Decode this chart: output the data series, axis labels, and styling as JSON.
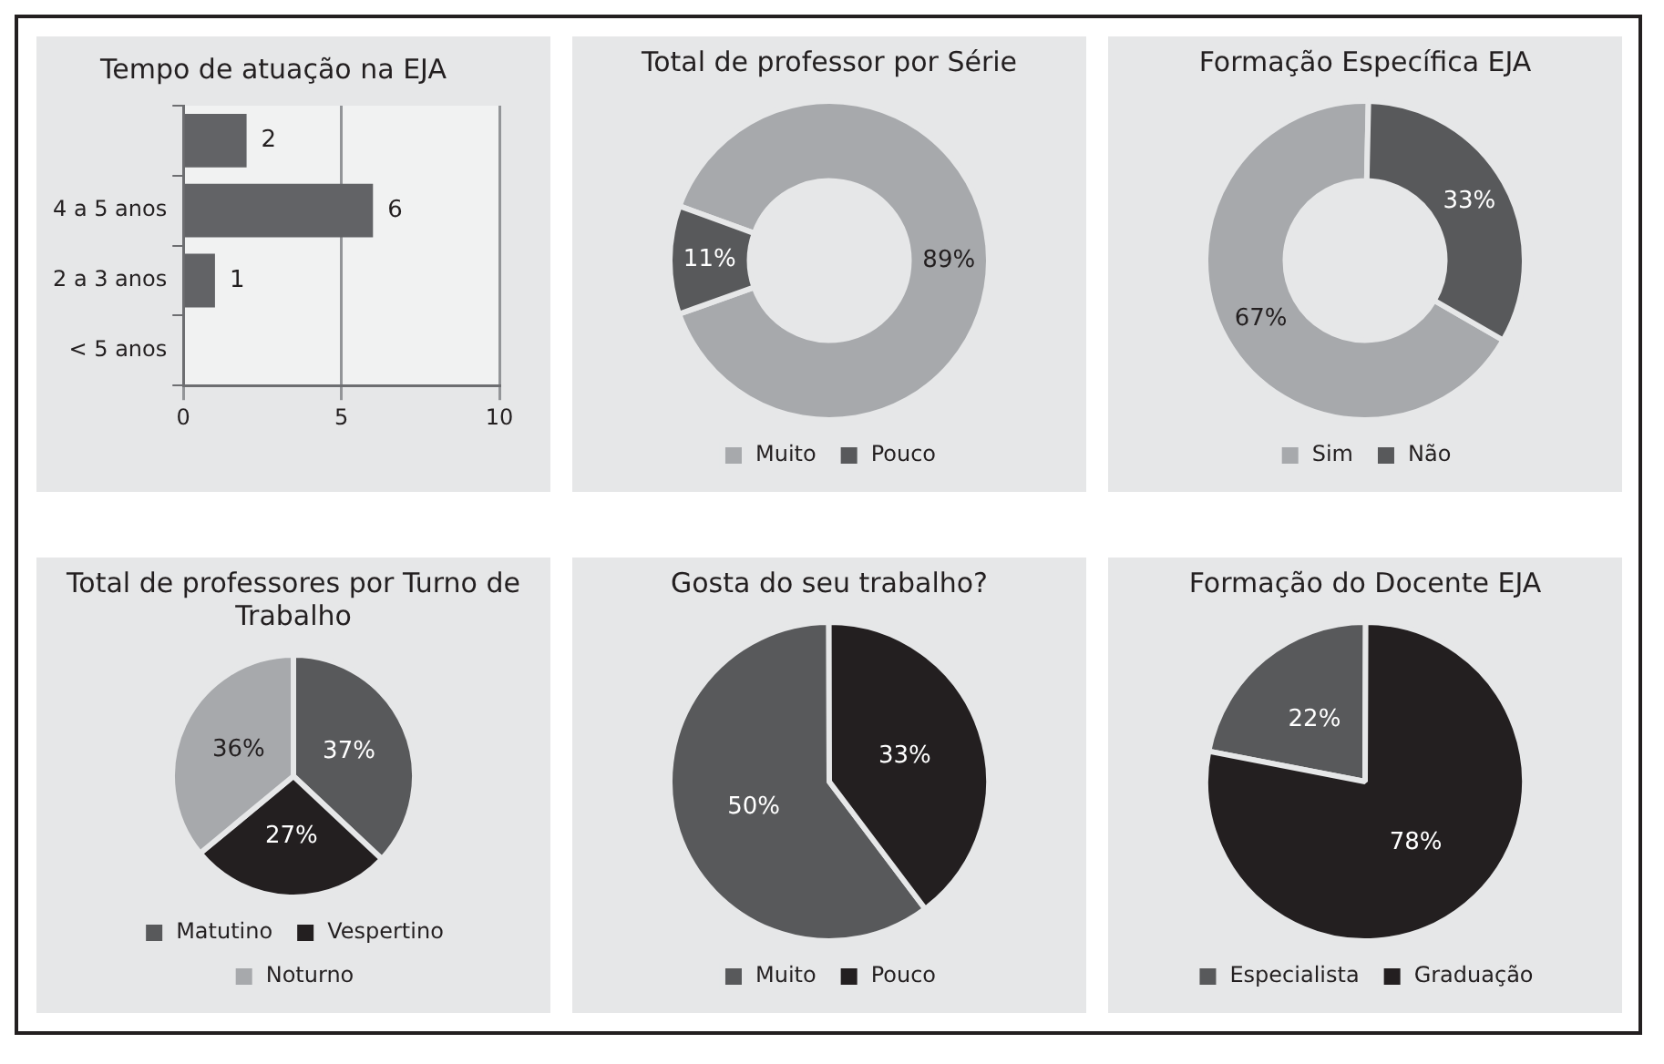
{
  "chart_data": [
    {
      "type": "bar",
      "title": "Tempo de atuação na EJA",
      "orientation": "horizontal",
      "categories": [
        null,
        "4 a 5 anos",
        "2 a 3 anos",
        "< 5 anos"
      ],
      "values": [
        2,
        6,
        1,
        null
      ],
      "color": "#626366",
      "xlim": [
        0,
        10
      ],
      "xticks": [
        0,
        5,
        10
      ],
      "grid": "x",
      "data_labels": true,
      "legend": false
    },
    {
      "type": "donut",
      "title": "Total de professor por Série",
      "categories": [
        "Muito",
        "Pouco"
      ],
      "values": [
        89,
        11
      ],
      "colors": [
        "#a7a9ac",
        "#58595b"
      ],
      "value_labels": [
        "89%",
        "11%"
      ],
      "legend": "bottom"
    },
    {
      "type": "donut",
      "title": "Formação Específica EJA",
      "categories": [
        "Sim",
        "Não"
      ],
      "values": [
        67,
        33
      ],
      "colors": [
        "#a7a9ac",
        "#58595b"
      ],
      "value_labels": [
        "67%",
        "33%"
      ],
      "legend": "bottom"
    },
    {
      "type": "pie",
      "title": "Total de professores por Turno de Trabalho",
      "categories": [
        "Matutino",
        "Vespertino",
        "Noturno"
      ],
      "values": [
        37,
        27,
        36
      ],
      "colors": [
        "#58595b",
        "#231f20",
        "#a7a9ac"
      ],
      "value_labels": [
        "37%",
        "27%",
        "36%"
      ],
      "legend": "bottom"
    },
    {
      "type": "pie",
      "title": "Gosta do seu trabalho?",
      "categories": [
        "Muito",
        "Pouco"
      ],
      "values": [
        50,
        33
      ],
      "colors": [
        "#58595b",
        "#231f20"
      ],
      "value_labels": [
        "50%",
        "33%"
      ],
      "legend": "bottom"
    },
    {
      "type": "pie",
      "title": "Formação do Docente EJA",
      "categories": [
        "Especialista",
        "Graduação"
      ],
      "values": [
        22,
        78
      ],
      "colors": [
        "#58595b",
        "#231f20"
      ],
      "value_labels": [
        "22%",
        "78%"
      ],
      "legend": "bottom"
    }
  ]
}
